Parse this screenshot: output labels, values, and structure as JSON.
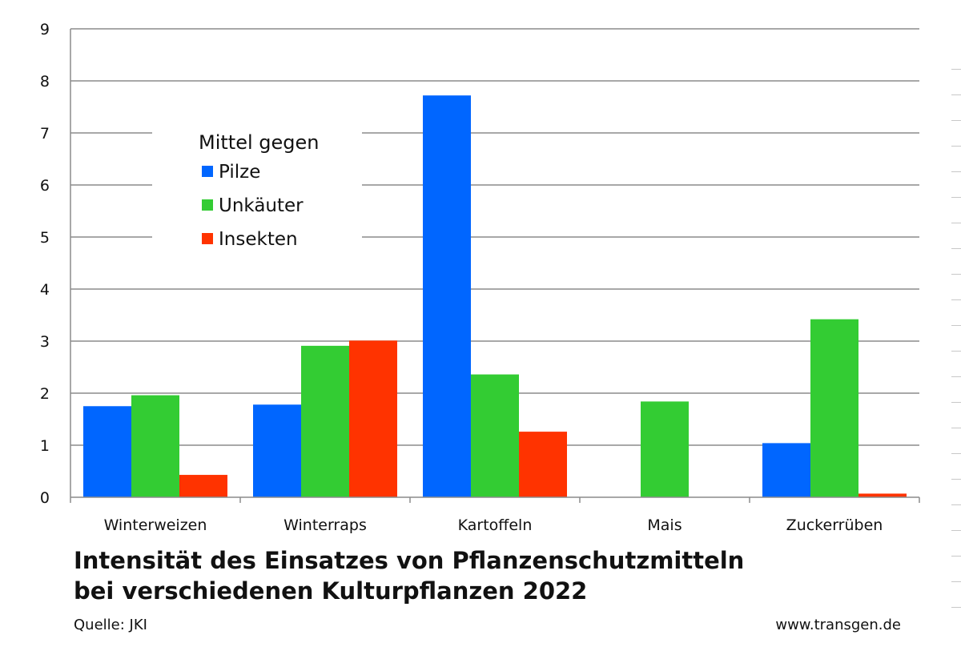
{
  "chart_data": {
    "type": "bar",
    "title": "Intensität des Einsatzes von Pflanzenschutzmitteln",
    "subtitle": "bei verschiedenen Kulturpflanzen 2022",
    "xlabel": "",
    "ylabel": "",
    "ylim": [
      0,
      9
    ],
    "yticks": [
      "0",
      "1",
      "2",
      "3",
      "4",
      "5",
      "6",
      "7",
      "8",
      "9"
    ],
    "grid": true,
    "legend_position": "top-left",
    "legend_title": "Mittel gegen",
    "categories": [
      "Winterweizen",
      "Winterraps",
      "Kartoffeln",
      "Mais",
      "Zuckerrüben"
    ],
    "series": [
      {
        "name": "Pilze",
        "color": "#0066ff",
        "values": [
          1.75,
          1.78,
          7.72,
          0,
          1.04
        ]
      },
      {
        "name": "Unkäuter",
        "color": "#33cc33",
        "values": [
          1.96,
          2.91,
          2.36,
          1.84,
          3.42
        ]
      },
      {
        "name": "Insekten",
        "color": "#ff3300",
        "values": [
          0.43,
          3.01,
          1.26,
          0,
          0.07
        ]
      }
    ]
  },
  "footer": {
    "source": "Quelle:  JKI",
    "website": "www.transgen.de"
  }
}
